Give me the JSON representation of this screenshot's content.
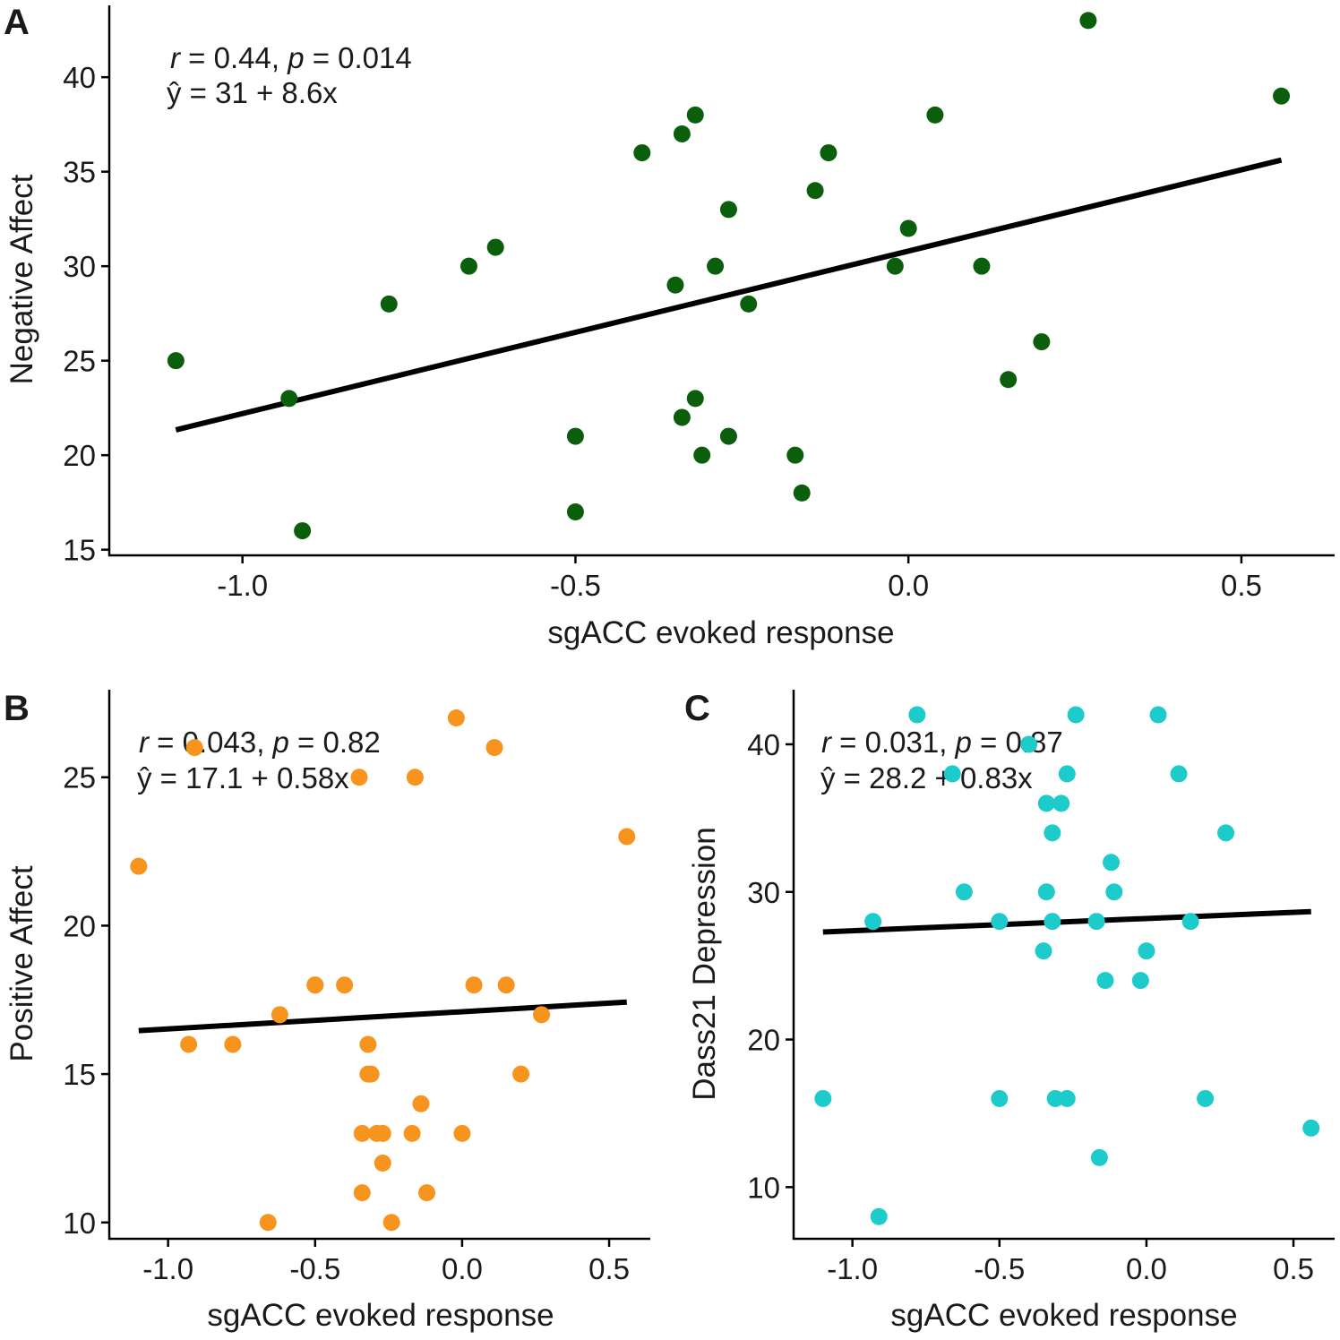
{
  "chart_data": [
    {
      "panel": "A",
      "type": "scatter",
      "xlabel": "sgACC evoked response",
      "ylabel": "Negative Affect",
      "xlim": [
        -1.2,
        0.64
      ],
      "ylim": [
        14.7,
        43.8
      ],
      "xticks": [
        -1.0,
        -0.5,
        0.0,
        0.5
      ],
      "xtick_labels": [
        "-1.0",
        "-0.5",
        "0.0",
        "0.5"
      ],
      "yticks": [
        15,
        20,
        25,
        30,
        35,
        40
      ],
      "ytick_labels": [
        "15",
        "20",
        "25",
        "30",
        "35",
        "40"
      ],
      "color": "#0b5e0b",
      "stat_r_label": "r",
      "stat_r_text": " = 0.44, ",
      "stat_p_label": "p",
      "stat_p_text": " = 0.014",
      "equation": "ŷ = 31 + 8.6x",
      "fit": {
        "intercept": 30.8,
        "slope": 8.6,
        "x_range": [
          -1.1,
          0.56
        ]
      },
      "points": [
        {
          "x": -1.1,
          "y": 25
        },
        {
          "x": -0.93,
          "y": 23
        },
        {
          "x": -0.91,
          "y": 16
        },
        {
          "x": -0.78,
          "y": 28
        },
        {
          "x": -0.66,
          "y": 30
        },
        {
          "x": -0.62,
          "y": 31
        },
        {
          "x": -0.5,
          "y": 21
        },
        {
          "x": -0.5,
          "y": 17
        },
        {
          "x": -0.4,
          "y": 36
        },
        {
          "x": -0.35,
          "y": 29
        },
        {
          "x": -0.34,
          "y": 37
        },
        {
          "x": -0.34,
          "y": 22
        },
        {
          "x": -0.32,
          "y": 38
        },
        {
          "x": -0.32,
          "y": 23
        },
        {
          "x": -0.31,
          "y": 20
        },
        {
          "x": -0.29,
          "y": 30
        },
        {
          "x": -0.27,
          "y": 33
        },
        {
          "x": -0.27,
          "y": 21
        },
        {
          "x": -0.24,
          "y": 28
        },
        {
          "x": -0.17,
          "y": 20
        },
        {
          "x": -0.16,
          "y": 18
        },
        {
          "x": -0.14,
          "y": 34
        },
        {
          "x": -0.12,
          "y": 36
        },
        {
          "x": -0.02,
          "y": 30
        },
        {
          "x": 0.0,
          "y": 32
        },
        {
          "x": 0.04,
          "y": 38
        },
        {
          "x": 0.11,
          "y": 30
        },
        {
          "x": 0.15,
          "y": 24
        },
        {
          "x": 0.2,
          "y": 26
        },
        {
          "x": 0.27,
          "y": 43
        },
        {
          "x": 0.56,
          "y": 39
        }
      ]
    },
    {
      "panel": "B",
      "type": "scatter",
      "xlabel": "sgACC evoked response",
      "ylabel": "Positive Affect",
      "xlim": [
        -1.2,
        0.64
      ],
      "ylim": [
        9.45,
        27.95
      ],
      "xticks": [
        -1.0,
        -0.5,
        0.0,
        0.5
      ],
      "xtick_labels": [
        "-1.0",
        "-0.5",
        "0.0",
        "0.5"
      ],
      "yticks": [
        10,
        15,
        20,
        25
      ],
      "ytick_labels": [
        "10",
        "15",
        "20",
        "25"
      ],
      "color": "#f7941d",
      "stat_r_label": "r",
      "stat_r_text": " = 0.043, ",
      "stat_p_label": "p",
      "stat_p_text": " = 0.82",
      "equation": "ŷ = 17.1 + 0.58x",
      "fit": {
        "intercept": 17.1,
        "slope": 0.58,
        "x_range": [
          -1.1,
          0.56
        ]
      },
      "points": [
        {
          "x": -1.1,
          "y": 22
        },
        {
          "x": -0.93,
          "y": 16
        },
        {
          "x": -0.91,
          "y": 26
        },
        {
          "x": -0.78,
          "y": 16
        },
        {
          "x": -0.66,
          "y": 10
        },
        {
          "x": -0.62,
          "y": 17
        },
        {
          "x": -0.5,
          "y": 18
        },
        {
          "x": -0.5,
          "y": 18
        },
        {
          "x": -0.4,
          "y": 18
        },
        {
          "x": -0.35,
          "y": 25
        },
        {
          "x": -0.34,
          "y": 13
        },
        {
          "x": -0.34,
          "y": 11
        },
        {
          "x": -0.32,
          "y": 16
        },
        {
          "x": -0.32,
          "y": 15
        },
        {
          "x": -0.31,
          "y": 15
        },
        {
          "x": -0.29,
          "y": 13
        },
        {
          "x": -0.27,
          "y": 13
        },
        {
          "x": -0.27,
          "y": 12
        },
        {
          "x": -0.24,
          "y": 10
        },
        {
          "x": -0.17,
          "y": 13
        },
        {
          "x": -0.16,
          "y": 25
        },
        {
          "x": -0.14,
          "y": 14
        },
        {
          "x": -0.12,
          "y": 11
        },
        {
          "x": -0.02,
          "y": 27
        },
        {
          "x": 0.0,
          "y": 13
        },
        {
          "x": 0.04,
          "y": 18
        },
        {
          "x": 0.11,
          "y": 26
        },
        {
          "x": 0.15,
          "y": 18
        },
        {
          "x": 0.2,
          "y": 15
        },
        {
          "x": 0.27,
          "y": 17
        },
        {
          "x": 0.56,
          "y": 23
        }
      ]
    },
    {
      "panel": "C",
      "type": "scatter",
      "xlabel": "sgACC evoked response",
      "ylabel": "Dass21 Depression",
      "xlim": [
        -1.2,
        0.64
      ],
      "ylim": [
        6.5,
        43.7
      ],
      "xticks": [
        -1.0,
        -0.5,
        0.0,
        0.5
      ],
      "xtick_labels": [
        "-1.0",
        "-0.5",
        "0.0",
        "0.5"
      ],
      "yticks": [
        10,
        20,
        30,
        40
      ],
      "ytick_labels": [
        "10",
        "20",
        "30",
        "40"
      ],
      "color": "#1ecbcb",
      "stat_r_label": "r",
      "stat_r_text": " = 0.031, ",
      "stat_p_label": "p",
      "stat_p_text": " = 0.87",
      "equation": "ŷ = 28.2 + 0.83x",
      "fit": {
        "intercept": 28.2,
        "slope": 0.83,
        "x_range": [
          -1.1,
          0.56
        ]
      },
      "points": [
        {
          "x": -1.1,
          "y": 16
        },
        {
          "x": -0.93,
          "y": 28
        },
        {
          "x": -0.91,
          "y": 8
        },
        {
          "x": -0.78,
          "y": 42
        },
        {
          "x": -0.66,
          "y": 38
        },
        {
          "x": -0.62,
          "y": 30
        },
        {
          "x": -0.5,
          "y": 28
        },
        {
          "x": -0.5,
          "y": 16
        },
        {
          "x": -0.4,
          "y": 40
        },
        {
          "x": -0.35,
          "y": 26
        },
        {
          "x": -0.34,
          "y": 36
        },
        {
          "x": -0.34,
          "y": 30
        },
        {
          "x": -0.32,
          "y": 34
        },
        {
          "x": -0.32,
          "y": 28
        },
        {
          "x": -0.31,
          "y": 16
        },
        {
          "x": -0.29,
          "y": 36
        },
        {
          "x": -0.27,
          "y": 38
        },
        {
          "x": -0.27,
          "y": 16
        },
        {
          "x": -0.24,
          "y": 42
        },
        {
          "x": -0.17,
          "y": 28
        },
        {
          "x": -0.16,
          "y": 12
        },
        {
          "x": -0.14,
          "y": 24
        },
        {
          "x": -0.12,
          "y": 32
        },
        {
          "x": -0.11,
          "y": 30
        },
        {
          "x": -0.02,
          "y": 24
        },
        {
          "x": 0.0,
          "y": 26
        },
        {
          "x": 0.04,
          "y": 42
        },
        {
          "x": 0.11,
          "y": 38
        },
        {
          "x": 0.15,
          "y": 28
        },
        {
          "x": 0.2,
          "y": 16
        },
        {
          "x": 0.27,
          "y": 34
        },
        {
          "x": 0.56,
          "y": 14
        }
      ]
    }
  ]
}
